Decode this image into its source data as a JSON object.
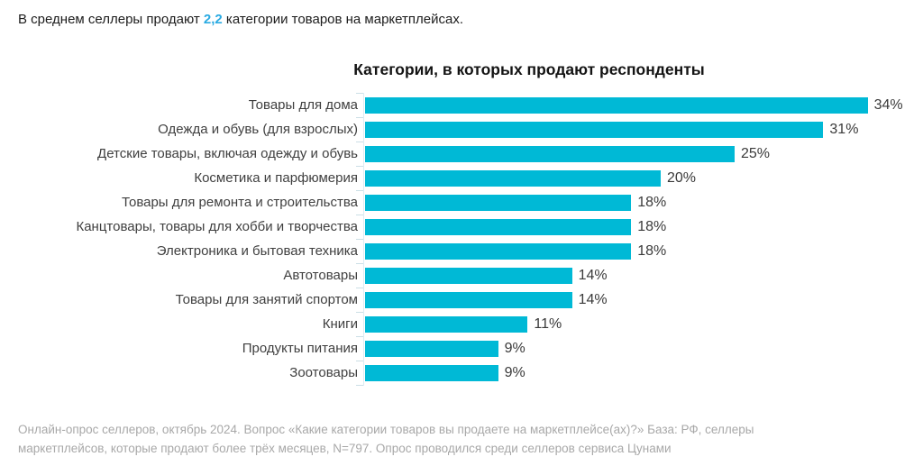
{
  "header": {
    "prefix": "В среднем селлеры продают ",
    "highlight": "2,2",
    "suffix": " категории товаров на маркетплейсах."
  },
  "chart_data": {
    "type": "bar",
    "orientation": "horizontal",
    "title": "Категории, в которых продают респонденты",
    "categories": [
      "Товары для дома",
      "Одежда и обувь (для взрослых)",
      "Детские товары, включая одежду и обувь",
      "Косметика и парфюмерия",
      "Товары для ремонта и строительства",
      "Канцтовары, товары для хобби и творчества",
      "Электроника и бытовая техника",
      "Автотовары",
      "Товары для занятий спортом",
      "Книги",
      "Продукты питания",
      "Зоотовары"
    ],
    "values": [
      34,
      31,
      25,
      20,
      18,
      18,
      18,
      14,
      14,
      11,
      9,
      9
    ],
    "value_suffix": "%",
    "xlim": [
      0,
      34
    ],
    "grid": "off",
    "legend": "none",
    "bar_color": "#00b9d6",
    "axis_color": "#ccdfe6"
  },
  "footer": {
    "line1": "Онлайн-опрос селлеров, октябрь 2024. Вопрос «Какие категории товаров вы продаете на маркетплейсе(ах)?» База: РФ, селлеры",
    "line2": "маркетплейсов, которые продают более трёх месяцев, N=797. Опрос проводился среди селлеров сервиса Цунами"
  },
  "colors": {
    "accent_text": "#29aae2",
    "bar": "#00b9d6",
    "category_label": "#3f3f3f",
    "title": "#141414",
    "footer_text": "#a8a8a8"
  }
}
